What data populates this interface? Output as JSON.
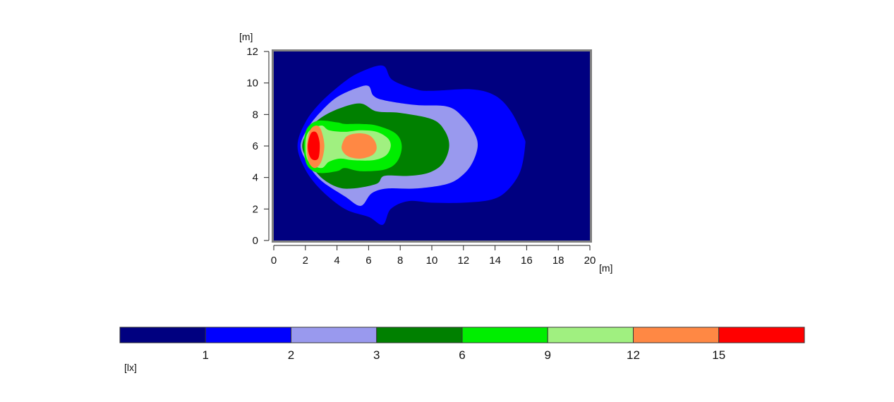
{
  "chart_data": {
    "type": "heatmap",
    "title": "",
    "xlabel": "[m]",
    "ylabel": "[m]",
    "xlim": [
      0,
      20
    ],
    "ylim": [
      0,
      12
    ],
    "x_ticks": [
      0,
      2,
      4,
      6,
      8,
      10,
      12,
      14,
      16,
      18,
      20
    ],
    "y_ticks": [
      0,
      2,
      4,
      6,
      8,
      10,
      12
    ],
    "grid": false,
    "legend": {
      "unit": "[lx]",
      "placement": "bottom",
      "thresholds": [
        1,
        2,
        3,
        6,
        9,
        12,
        15
      ],
      "colors": [
        "#000080",
        "#0000FF",
        "#9999EE",
        "#008000",
        "#00EE00",
        "#A0F080",
        "#FF8844",
        "#FF0000"
      ]
    },
    "contours": [
      {
        "level": "<1",
        "color": "#000080",
        "points": [
          [
            0,
            0
          ],
          [
            20,
            0
          ],
          [
            20,
            12
          ],
          [
            0,
            12
          ]
        ]
      },
      {
        "level": "1-2",
        "color": "#0000FF",
        "points": [
          [
            1.5,
            6
          ],
          [
            2,
            7.5
          ],
          [
            3,
            8.8
          ],
          [
            4.5,
            10.1
          ],
          [
            5.5,
            10.7
          ],
          [
            6.9,
            11.1
          ],
          [
            7.5,
            10.2
          ],
          [
            9,
            9.6
          ],
          [
            10,
            9.5
          ],
          [
            12.5,
            9.6
          ],
          [
            14,
            9.2
          ],
          [
            15,
            8.2
          ],
          [
            15.8,
            6.6
          ],
          [
            15.9,
            6
          ],
          [
            15.6,
            4.4
          ],
          [
            14.8,
            3.2
          ],
          [
            13.8,
            2.6
          ],
          [
            12,
            2.4
          ],
          [
            10,
            2.4
          ],
          [
            8.5,
            2.5
          ],
          [
            7.4,
            2.0
          ],
          [
            6.9,
            1.0
          ],
          [
            6,
            1.5
          ],
          [
            4.5,
            2.0
          ],
          [
            3,
            3.2
          ],
          [
            2,
            4.5
          ]
        ]
      },
      {
        "level": "2-3",
        "color": "#9999EE",
        "points": [
          [
            1.7,
            6
          ],
          [
            2.2,
            7.2
          ],
          [
            3,
            8.2
          ],
          [
            4,
            9.1
          ],
          [
            5.3,
            9.7
          ],
          [
            6,
            9.8
          ],
          [
            6.3,
            9.2
          ],
          [
            7,
            8.9
          ],
          [
            9,
            8.6
          ],
          [
            11,
            8.5
          ],
          [
            12,
            7.8
          ],
          [
            12.7,
            6.8
          ],
          [
            12.9,
            6
          ],
          [
            12.6,
            5.0
          ],
          [
            12,
            4.2
          ],
          [
            11,
            3.6
          ],
          [
            9,
            3.3
          ],
          [
            7.2,
            3.3
          ],
          [
            6.2,
            3.0
          ],
          [
            5.5,
            2.2
          ],
          [
            4.5,
            2.8
          ],
          [
            3,
            3.8
          ],
          [
            2.2,
            4.8
          ]
        ]
      },
      {
        "level": "3-6",
        "color": "#008000",
        "points": [
          [
            1.8,
            6
          ],
          [
            2.2,
            7.0
          ],
          [
            3,
            7.8
          ],
          [
            4.2,
            8.4
          ],
          [
            5.5,
            8.7
          ],
          [
            6.5,
            8.2
          ],
          [
            8,
            8.1
          ],
          [
            10,
            7.7
          ],
          [
            10.8,
            7.0
          ],
          [
            11.1,
            6
          ],
          [
            10.7,
            4.9
          ],
          [
            9.8,
            4.3
          ],
          [
            8.5,
            4.1
          ],
          [
            7,
            4.1
          ],
          [
            6.5,
            3.6
          ],
          [
            5,
            3.3
          ],
          [
            4,
            3.4
          ],
          [
            3,
            4.0
          ],
          [
            2.2,
            5.0
          ]
        ]
      },
      {
        "level": "6-9",
        "color": "#00EE00",
        "points": [
          [
            1.9,
            6
          ],
          [
            2.1,
            7.1
          ],
          [
            2.8,
            7.6
          ],
          [
            4,
            7.5
          ],
          [
            4.5,
            7.4
          ],
          [
            5.5,
            7.4
          ],
          [
            6.5,
            7.3
          ],
          [
            7.7,
            6.8
          ],
          [
            8.1,
            6
          ],
          [
            7.8,
            5.0
          ],
          [
            7,
            4.5
          ],
          [
            5.5,
            4.4
          ],
          [
            4.5,
            4.6
          ],
          [
            4,
            4.4
          ],
          [
            2.8,
            4.3
          ],
          [
            2.1,
            4.8
          ]
        ]
      },
      {
        "level": "9-12",
        "color": "#A0F080",
        "points": [
          [
            2,
            6
          ],
          [
            2.2,
            6.9
          ],
          [
            3,
            7.3
          ],
          [
            3.5,
            7.0
          ],
          [
            4.5,
            6.9
          ],
          [
            5.5,
            7.0
          ],
          [
            6.5,
            6.9
          ],
          [
            7.2,
            6.5
          ],
          [
            7.4,
            6
          ],
          [
            7.1,
            5.4
          ],
          [
            6.3,
            5.1
          ],
          [
            5,
            5.1
          ],
          [
            4.2,
            5.2
          ],
          [
            3.5,
            5.0
          ],
          [
            3,
            4.6
          ],
          [
            2.2,
            5.0
          ]
        ]
      },
      {
        "level": "12-15",
        "color": "#FF8844",
        "points": [
          [
            2.1,
            6
          ],
          [
            2.3,
            7.0
          ],
          [
            2.7,
            7.3
          ],
          [
            3.0,
            7.0
          ],
          [
            3.2,
            6
          ],
          [
            3.0,
            5.0
          ],
          [
            2.6,
            4.6
          ],
          [
            2.2,
            5.0
          ]
        ]
      },
      {
        "level": "12-15",
        "color": "#FF8844",
        "points": [
          [
            4.3,
            6
          ],
          [
            4.6,
            6.6
          ],
          [
            5.3,
            6.8
          ],
          [
            6.0,
            6.7
          ],
          [
            6.4,
            6.3
          ],
          [
            6.5,
            5.8
          ],
          [
            6.2,
            5.4
          ],
          [
            5.5,
            5.2
          ],
          [
            4.8,
            5.3
          ],
          [
            4.4,
            5.6
          ]
        ]
      },
      {
        "level": ">15",
        "color": "#FF0000",
        "points": [
          [
            2.15,
            6
          ],
          [
            2.35,
            6.8
          ],
          [
            2.7,
            6.85
          ],
          [
            2.9,
            6.2
          ],
          [
            2.85,
            5.3
          ],
          [
            2.6,
            5.1
          ],
          [
            2.3,
            5.3
          ]
        ]
      }
    ]
  }
}
